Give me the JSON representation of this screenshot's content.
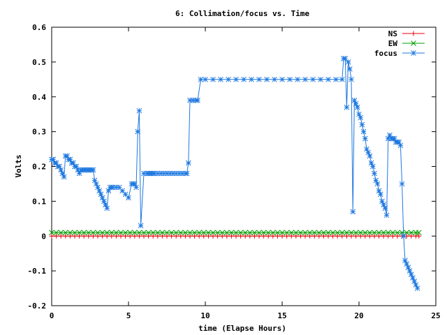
{
  "chart_data": {
    "type": "line",
    "title": "6: Collimation/focus vs. Time",
    "xlabel": "time (Elapse Hours)",
    "ylabel": "Volts",
    "xlim": [
      0,
      25
    ],
    "ylim": [
      -0.2,
      0.6
    ],
    "xticks": [
      0,
      5,
      10,
      15,
      20,
      25
    ],
    "yticks": [
      -0.2,
      -0.1,
      0,
      0.1,
      0.2,
      0.3,
      0.4,
      0.5,
      0.6
    ],
    "xtick_labels": [
      "0",
      "5",
      "10",
      "15",
      "20",
      "25"
    ],
    "ytick_labels": [
      "-0.2",
      "-0.1",
      "0",
      "0.1",
      "0.2",
      "0.3",
      "0.4",
      "0.5",
      "0.6"
    ],
    "legend_position": "top-right",
    "grid": false,
    "series": [
      {
        "name": "NS",
        "color": "#e8000b",
        "marker": "plus",
        "x": [
          0,
          0.3,
          0.6,
          0.9,
          1.2,
          1.5,
          1.8,
          2.1,
          2.4,
          2.7,
          3.0,
          3.3,
          3.6,
          3.9,
          4.2,
          4.5,
          4.8,
          5.1,
          5.4,
          5.7,
          6.0,
          6.3,
          6.6,
          6.9,
          7.2,
          7.5,
          7.8,
          8.1,
          8.4,
          8.7,
          9.0,
          9.3,
          9.6,
          9.9,
          10.2,
          10.5,
          10.8,
          11.1,
          11.4,
          11.7,
          12.0,
          12.3,
          12.6,
          12.9,
          13.2,
          13.5,
          13.8,
          14.1,
          14.4,
          14.7,
          15.0,
          15.3,
          15.6,
          15.9,
          16.2,
          16.5,
          16.8,
          17.1,
          17.4,
          17.7,
          18.0,
          18.3,
          18.6,
          18.9,
          19.2,
          19.5,
          19.8,
          20.1,
          20.4,
          20.7,
          21.0,
          21.3,
          21.6,
          21.9,
          22.2,
          22.5,
          22.8,
          23.1,
          23.4,
          23.7,
          23.9
        ],
        "y": [
          0,
          0,
          0,
          0,
          0,
          0,
          0,
          0,
          0,
          0,
          0,
          0,
          0,
          0,
          0,
          0,
          0,
          0,
          0,
          0,
          0,
          0,
          0,
          0,
          0,
          0,
          0,
          0,
          0,
          0,
          0,
          0,
          0,
          0,
          0,
          0,
          0,
          0,
          0,
          0,
          0,
          0,
          0,
          0,
          0,
          0,
          0,
          0,
          0,
          0,
          0,
          0,
          0,
          0,
          0,
          0,
          0,
          0,
          0,
          0,
          0,
          0,
          0,
          0,
          0,
          0,
          0,
          0,
          0,
          0,
          0,
          0,
          0,
          0,
          0,
          0,
          0,
          0,
          0,
          0,
          0
        ]
      },
      {
        "name": "EW",
        "color": "#00a000",
        "marker": "cross",
        "x": [
          0,
          0.3,
          0.6,
          0.9,
          1.2,
          1.5,
          1.8,
          2.1,
          2.4,
          2.7,
          3.0,
          3.3,
          3.6,
          3.9,
          4.2,
          4.5,
          4.8,
          5.1,
          5.4,
          5.7,
          6.0,
          6.3,
          6.6,
          6.9,
          7.2,
          7.5,
          7.8,
          8.1,
          8.4,
          8.7,
          9.0,
          9.3,
          9.6,
          9.9,
          10.2,
          10.5,
          10.8,
          11.1,
          11.4,
          11.7,
          12.0,
          12.3,
          12.6,
          12.9,
          13.2,
          13.5,
          13.8,
          14.1,
          14.4,
          14.7,
          15.0,
          15.3,
          15.6,
          15.9,
          16.2,
          16.5,
          16.8,
          17.1,
          17.4,
          17.7,
          18.0,
          18.3,
          18.6,
          18.9,
          19.2,
          19.5,
          19.8,
          20.1,
          20.4,
          20.7,
          21.0,
          21.3,
          21.6,
          21.9,
          22.2,
          22.5,
          22.8,
          23.1,
          23.4,
          23.7,
          23.9
        ],
        "y": [
          0.01,
          0.01,
          0.01,
          0.01,
          0.01,
          0.01,
          0.01,
          0.01,
          0.01,
          0.01,
          0.01,
          0.01,
          0.01,
          0.01,
          0.01,
          0.01,
          0.01,
          0.01,
          0.01,
          0.01,
          0.01,
          0.01,
          0.01,
          0.01,
          0.01,
          0.01,
          0.01,
          0.01,
          0.01,
          0.01,
          0.01,
          0.01,
          0.01,
          0.01,
          0.01,
          0.01,
          0.01,
          0.01,
          0.01,
          0.01,
          0.01,
          0.01,
          0.01,
          0.01,
          0.01,
          0.01,
          0.01,
          0.01,
          0.01,
          0.01,
          0.01,
          0.01,
          0.01,
          0.01,
          0.01,
          0.01,
          0.01,
          0.01,
          0.01,
          0.01,
          0.01,
          0.01,
          0.01,
          0.01,
          0.01,
          0.01,
          0.01,
          0.01,
          0.01,
          0.01,
          0.01,
          0.01,
          0.01,
          0.01,
          0.01,
          0.01,
          0.01,
          0.01,
          0.01,
          0.01,
          0.01
        ]
      },
      {
        "name": "focus",
        "color": "#1e78e0",
        "marker": "star",
        "x": [
          0,
          0.1,
          0.2,
          0.3,
          0.4,
          0.5,
          0.6,
          0.7,
          0.8,
          0.9,
          1.0,
          1.1,
          1.2,
          1.3,
          1.4,
          1.5,
          1.6,
          1.7,
          1.8,
          1.9,
          2.0,
          2.1,
          2.2,
          2.3,
          2.4,
          2.5,
          2.6,
          2.7,
          2.8,
          2.9,
          3.0,
          3.1,
          3.2,
          3.3,
          3.4,
          3.5,
          3.6,
          3.7,
          3.8,
          3.9,
          4.0,
          4.2,
          4.4,
          4.6,
          4.8,
          5.0,
          5.2,
          5.3,
          5.4,
          5.5,
          5.6,
          5.7,
          5.8,
          6.0,
          6.2,
          6.3,
          6.4,
          6.5,
          6.6,
          6.7,
          6.9,
          7.1,
          7.3,
          7.5,
          7.7,
          7.9,
          8.1,
          8.3,
          8.5,
          8.7,
          8.8,
          8.9,
          9.0,
          9.2,
          9.4,
          9.5,
          9.7,
          10.0,
          10.5,
          11.0,
          11.5,
          12.0,
          12.5,
          13.0,
          13.5,
          14.0,
          14.5,
          15.0,
          15.5,
          16.0,
          16.5,
          17.0,
          17.5,
          18.0,
          18.5,
          18.9,
          19.0,
          19.1,
          19.2,
          19.3,
          19.4,
          19.5,
          19.6,
          19.7,
          19.8,
          19.9,
          20.0,
          20.1,
          20.2,
          20.3,
          20.4,
          20.5,
          20.6,
          20.7,
          20.8,
          20.9,
          21.0,
          21.1,
          21.2,
          21.3,
          21.4,
          21.5,
          21.6,
          21.7,
          21.8,
          21.9,
          22.0,
          22.1,
          22.2,
          22.3,
          22.4,
          22.5,
          22.6,
          22.7,
          22.8,
          22.9,
          23.0,
          23.1,
          23.2,
          23.3,
          23.4,
          23.5,
          23.6,
          23.7,
          23.8
        ],
        "y": [
          0.22,
          0.22,
          0.21,
          0.21,
          0.2,
          0.2,
          0.19,
          0.18,
          0.17,
          0.23,
          0.23,
          0.22,
          0.22,
          0.21,
          0.21,
          0.2,
          0.2,
          0.19,
          0.18,
          0.19,
          0.19,
          0.19,
          0.19,
          0.19,
          0.19,
          0.19,
          0.19,
          0.19,
          0.16,
          0.15,
          0.14,
          0.13,
          0.12,
          0.11,
          0.1,
          0.09,
          0.08,
          0.13,
          0.14,
          0.14,
          0.14,
          0.14,
          0.14,
          0.13,
          0.12,
          0.11,
          0.15,
          0.15,
          0.15,
          0.14,
          0.3,
          0.36,
          0.03,
          0.18,
          0.18,
          0.18,
          0.18,
          0.18,
          0.18,
          0.18,
          0.18,
          0.18,
          0.18,
          0.18,
          0.18,
          0.18,
          0.18,
          0.18,
          0.18,
          0.18,
          0.18,
          0.21,
          0.39,
          0.39,
          0.39,
          0.39,
          0.45,
          0.45,
          0.45,
          0.45,
          0.45,
          0.45,
          0.45,
          0.45,
          0.45,
          0.45,
          0.45,
          0.45,
          0.45,
          0.45,
          0.45,
          0.45,
          0.45,
          0.45,
          0.45,
          0.45,
          0.51,
          0.51,
          0.37,
          0.5,
          0.48,
          0.45,
          0.07,
          0.39,
          0.38,
          0.37,
          0.35,
          0.34,
          0.32,
          0.3,
          0.28,
          0.25,
          0.24,
          0.23,
          0.21,
          0.2,
          0.18,
          0.16,
          0.15,
          0.13,
          0.12,
          0.1,
          0.09,
          0.08,
          0.06,
          0.28,
          0.29,
          0.28,
          0.28,
          0.28,
          0.27,
          0.27,
          0.27,
          0.26,
          0.15,
          0.0,
          -0.07,
          -0.08,
          -0.09,
          -0.1,
          -0.11,
          -0.12,
          -0.13,
          -0.14,
          -0.15
        ]
      }
    ]
  }
}
